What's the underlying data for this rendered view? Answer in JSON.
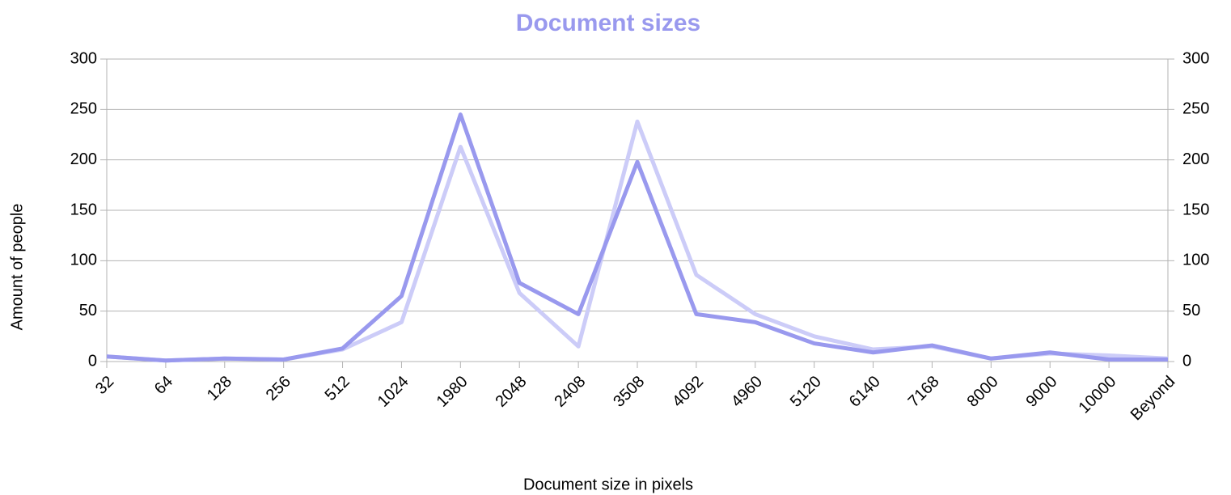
{
  "chart_data": {
    "type": "line",
    "title": "Document sizes",
    "x_label": "Document size in pixels",
    "y_label": "Amount of people",
    "categories": [
      "32",
      "64",
      "128",
      "256",
      "512",
      "1024",
      "1980",
      "2048",
      "2408",
      "3508",
      "4092",
      "4960",
      "5120",
      "6140",
      "7168",
      "8000",
      "9000",
      "10000",
      "Beyond"
    ],
    "series": [
      {
        "color": "#ccccf8",
        "values": [
          5,
          1,
          3,
          2,
          12,
          39,
          213,
          68,
          15,
          238,
          86,
          47,
          25,
          12,
          15,
          3,
          8,
          6,
          3
        ]
      },
      {
        "color": "#9999ee",
        "values": [
          5,
          1,
          3,
          2,
          13,
          65,
          245,
          78,
          47,
          198,
          47,
          39,
          18,
          9,
          16,
          3,
          9,
          2,
          2
        ]
      }
    ],
    "ylim": [
      0,
      300
    ],
    "yticks": [
      0,
      50,
      100,
      150,
      200,
      250,
      300
    ],
    "y2lim": [
      0,
      300
    ],
    "y2ticks": [
      0,
      50,
      100,
      150,
      200,
      250,
      300
    ],
    "grid": true
  }
}
